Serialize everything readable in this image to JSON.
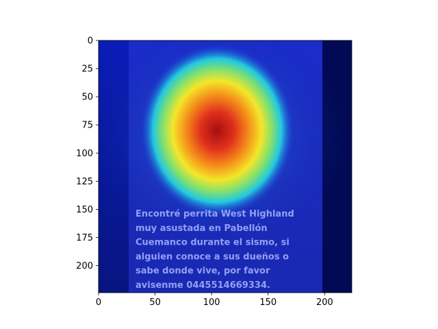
{
  "chart_data": {
    "type": "heatmap",
    "title": "",
    "xlabel": "",
    "ylabel": "",
    "xlim": [
      0,
      224
    ],
    "ylim": [
      224,
      0
    ],
    "x_ticks": [
      0,
      50,
      100,
      150,
      200
    ],
    "y_ticks": [
      0,
      25,
      50,
      75,
      100,
      125,
      150,
      175,
      200
    ],
    "colormap": "jet",
    "grid": false,
    "hotspot": {
      "x": 105,
      "y": 80
    },
    "image_caption_lines": [
      "Encontré perrita West Highland",
      "muy asustada en Pabellón",
      "Cuemanco durante el sismo, si",
      "alguien conoce a sus dueños o",
      "sabe donde vive, por favor",
      "avisenme 0445514669334."
    ]
  }
}
